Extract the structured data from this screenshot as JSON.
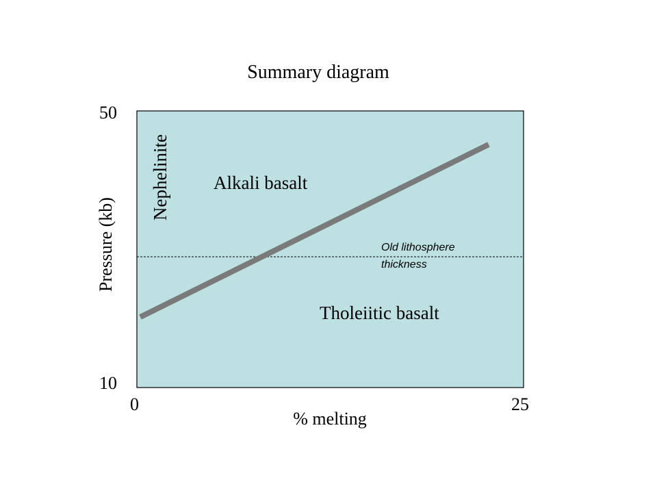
{
  "title": "Summary diagram",
  "axes": {
    "x_label": "% melting",
    "y_label": "Pressure (kb)",
    "x_min_label": "0",
    "x_max_label": "25",
    "y_min_label": "10",
    "y_max_label": "50"
  },
  "regions": {
    "alkali": "Alkali basalt",
    "tholeiitic": "Tholeiitic basalt",
    "nephelinite": "Nephelinite"
  },
  "lithosphere_note": {
    "line1": "Old lithosphere",
    "line2": "thickness"
  },
  "colors": {
    "plot_background": "#bde0e3",
    "trend_line": "#7a7a7a"
  }
}
